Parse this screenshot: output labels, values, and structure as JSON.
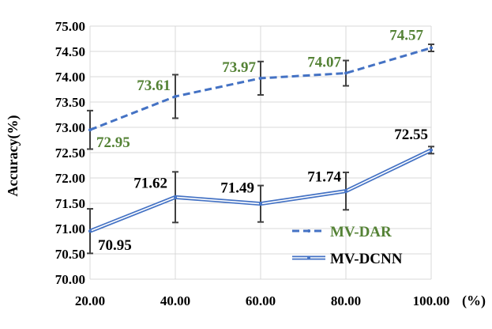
{
  "chart_data": {
    "type": "line",
    "title": "",
    "xlabel": "",
    "x_unit": "(%)",
    "ylabel": "Accuracy(%)",
    "x": [
      "20.00",
      "40.00",
      "60.00",
      "80.00",
      "100.00"
    ],
    "ylim": [
      70.0,
      75.0
    ],
    "y_ticks": [
      "70.00",
      "70.50",
      "71.00",
      "71.50",
      "72.00",
      "72.50",
      "73.00",
      "73.50",
      "74.00",
      "74.50",
      "75.00"
    ],
    "grid": true,
    "legend_position": "bottom-right",
    "series": [
      {
        "name": "MV-DAR",
        "color": "#4472c4",
        "label_color": "#548235",
        "style": "dashed",
        "values": [
          72.95,
          73.61,
          73.97,
          74.07,
          74.57
        ],
        "labels": [
          "72.95",
          "73.61",
          "73.97",
          "74.07",
          "74.57"
        ],
        "error": [
          0.38,
          0.43,
          0.33,
          0.25,
          0.07
        ]
      },
      {
        "name": "MV-DCNN",
        "color": "#4472c4",
        "label_color": "#000000",
        "style": "double",
        "values": [
          70.95,
          71.62,
          71.49,
          71.74,
          72.55
        ],
        "labels": [
          "70.95",
          "71.62",
          "71.49",
          "71.74",
          "72.55"
        ],
        "error": [
          0.44,
          0.5,
          0.36,
          0.37,
          0.07
        ]
      }
    ]
  }
}
